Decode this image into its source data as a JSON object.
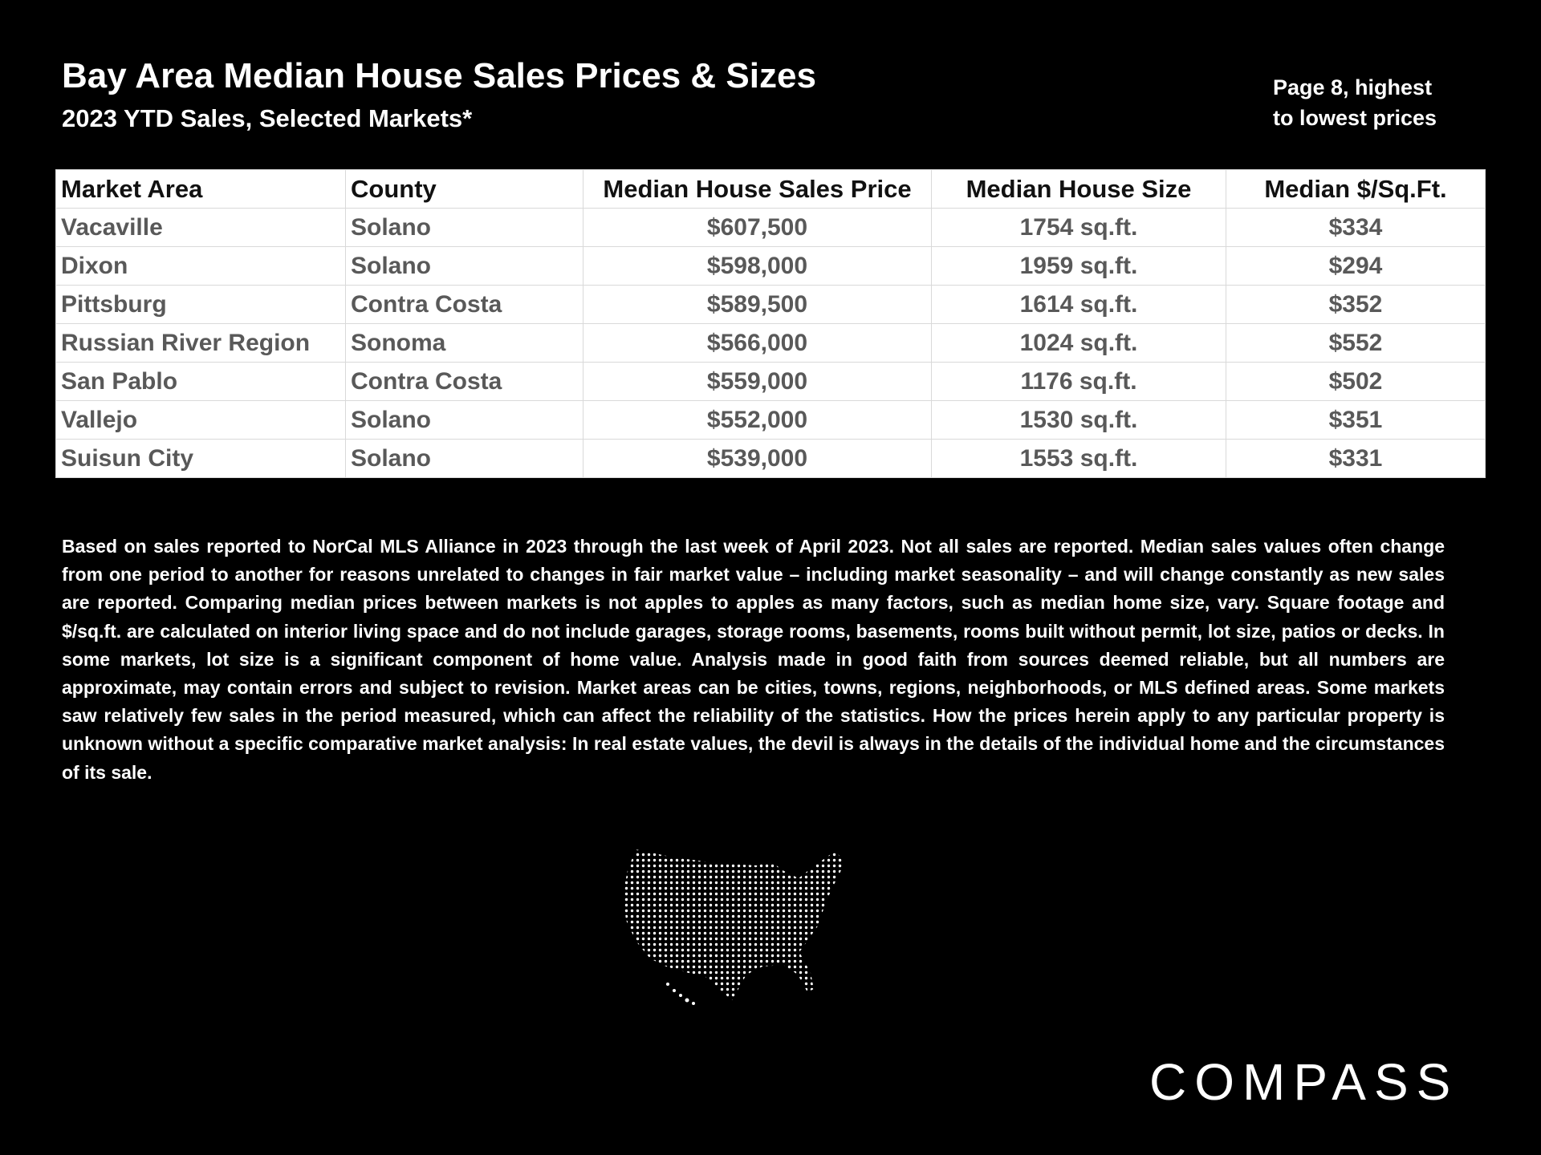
{
  "header": {
    "title": "Bay Area Median House Sales Prices & Sizes",
    "subtitle": "2023 YTD Sales, Selected Markets*",
    "note": "Page 8, highest to lowest prices"
  },
  "table": {
    "columns": [
      "Market Area",
      "County",
      "Median House Sales Price",
      "Median House Size",
      "Median $/Sq.Ft."
    ],
    "rows": [
      [
        "Vacaville",
        "Solano",
        "$607,500",
        "1754 sq.ft.",
        "$334"
      ],
      [
        "Dixon",
        "Solano",
        "$598,000",
        "1959 sq.ft.",
        "$294"
      ],
      [
        "Pittsburg",
        "Contra Costa",
        "$589,500",
        "1614 sq.ft.",
        "$352"
      ],
      [
        "Russian River Region",
        "Sonoma",
        "$566,000",
        "1024 sq.ft.",
        "$552"
      ],
      [
        "San Pablo",
        "Contra Costa",
        "$559,000",
        "1176 sq.ft.",
        "$502"
      ],
      [
        "Vallejo",
        "Solano",
        "$552,000",
        "1530 sq.ft.",
        "$351"
      ],
      [
        "Suisun City",
        "Solano",
        "$539,000",
        "1553 sq.ft.",
        "$331"
      ]
    ]
  },
  "footnote": "Based on sales reported to NorCal MLS Alliance in 2023 through the last week of April 2023.  Not all sales are reported. Median sales values often change from one period to another for reasons unrelated to changes in fair market value – including market seasonality – and will change constantly as new sales are reported. Comparing median prices between markets is not apples to apples as many factors, such as median home size, vary. Square footage and $/sq.ft. are calculated on interior living space and do not include garages, storage rooms, basements, rooms built without permit, lot size, patios or decks. In some markets, lot size is a significant component of home value. Analysis made in good faith from sources deemed reliable, but all numbers are approximate, may contain errors and subject to revision. Market areas can be cities, towns, regions, neighborhoods, or MLS defined areas. Some markets saw relatively few sales in the period measured, which can affect the reliability of the statistics. How the prices herein apply to any particular property is unknown without a specific comparative market analysis: In real estate values, the devil is always in the details of the individual home and the circumstances of its sale.",
  "logo": "COMPASS"
}
